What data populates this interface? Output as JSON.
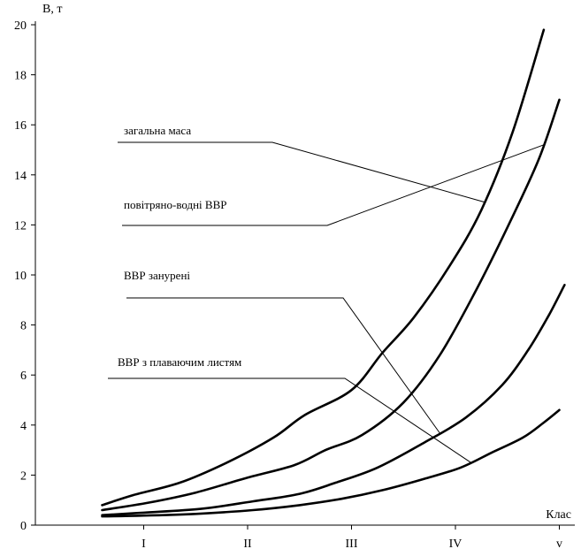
{
  "chart_data": {
    "type": "line",
    "ylabel": "В, т",
    "xlabel": "Клас",
    "ylim": [
      0,
      20
    ],
    "y_ticks": [
      "0",
      "2",
      "4",
      "6",
      "8",
      "10",
      "12",
      "14",
      "16",
      "18",
      "20"
    ],
    "x_categories": [
      "I",
      "II",
      "III",
      "IV",
      "v"
    ],
    "grid": false,
    "series": [
      {
        "name": "загальна маса",
        "points": [
          [
            0.6,
            0.8
          ],
          [
            0.9,
            1.2
          ],
          [
            1.35,
            1.7
          ],
          [
            1.8,
            2.5
          ],
          [
            2.25,
            3.5
          ],
          [
            2.55,
            4.4
          ],
          [
            3.0,
            5.4
          ],
          [
            3.3,
            6.9
          ],
          [
            3.6,
            8.3
          ],
          [
            3.95,
            10.4
          ],
          [
            4.25,
            12.6
          ],
          [
            4.55,
            15.7
          ],
          [
            4.85,
            19.8
          ]
        ]
      },
      {
        "name": "повітряно-водні ВВР",
        "points": [
          [
            0.6,
            0.6
          ],
          [
            1.05,
            0.9
          ],
          [
            1.5,
            1.3
          ],
          [
            2.0,
            1.9
          ],
          [
            2.45,
            2.4
          ],
          [
            2.75,
            3.0
          ],
          [
            3.1,
            3.6
          ],
          [
            3.5,
            4.9
          ],
          [
            3.85,
            6.8
          ],
          [
            4.2,
            9.4
          ],
          [
            4.5,
            11.9
          ],
          [
            4.8,
            14.6
          ],
          [
            5.0,
            17.0
          ]
        ]
      },
      {
        "name": "ВВР занурені",
        "points": [
          [
            0.6,
            0.4
          ],
          [
            1.0,
            0.5
          ],
          [
            1.55,
            0.65
          ],
          [
            2.05,
            0.95
          ],
          [
            2.5,
            1.25
          ],
          [
            2.85,
            1.7
          ],
          [
            3.25,
            2.3
          ],
          [
            3.7,
            3.3
          ],
          [
            4.1,
            4.3
          ],
          [
            4.45,
            5.6
          ],
          [
            4.7,
            7.0
          ],
          [
            4.9,
            8.4
          ],
          [
            5.05,
            9.6
          ]
        ]
      },
      {
        "name": "ВВР з плаваючим листям",
        "points": [
          [
            0.6,
            0.35
          ],
          [
            1.0,
            0.38
          ],
          [
            1.5,
            0.45
          ],
          [
            2.05,
            0.6
          ],
          [
            2.5,
            0.8
          ],
          [
            2.9,
            1.05
          ],
          [
            3.3,
            1.4
          ],
          [
            3.7,
            1.85
          ],
          [
            4.05,
            2.3
          ],
          [
            4.35,
            2.9
          ],
          [
            4.65,
            3.5
          ],
          [
            4.85,
            4.1
          ],
          [
            5.0,
            4.6
          ]
        ]
      }
    ],
    "annotations": [
      {
        "text": "загальна маса",
        "series": 0,
        "anchor_x": 4.28
      },
      {
        "text": "повітряно-водні ВВР",
        "series": 1,
        "anchor_x": 4.85
      },
      {
        "text": "ВВР занурені",
        "series": 2,
        "anchor_x": 3.85
      },
      {
        "text": "ВВР з плаваючим листям",
        "series": 3,
        "anchor_x": 4.15
      }
    ]
  }
}
